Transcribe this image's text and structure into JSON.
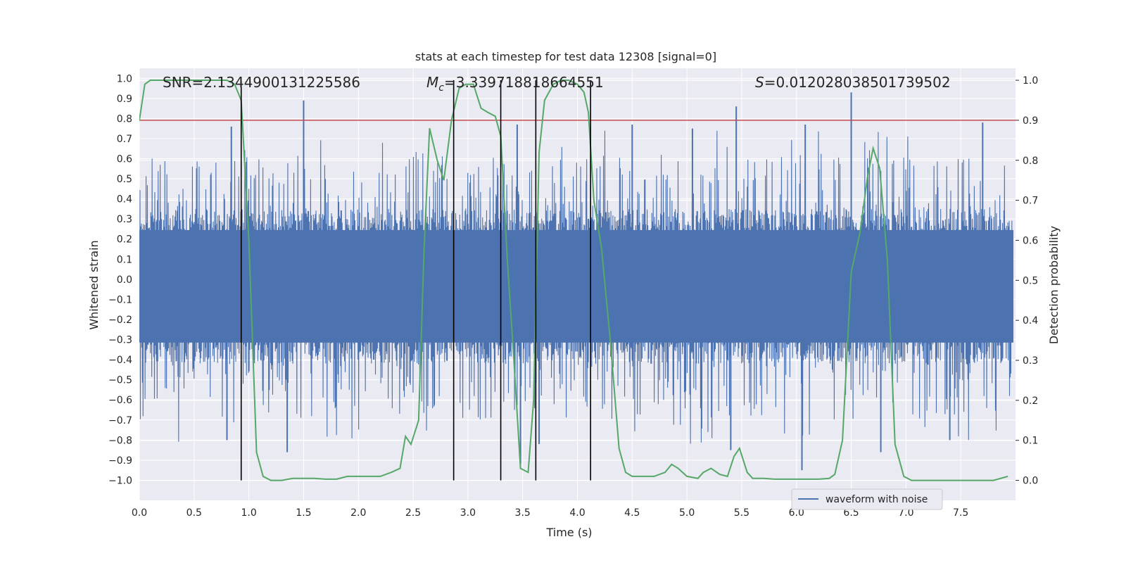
{
  "chart_data": {
    "type": "line",
    "title": "stats at each timestep for test data 12308 [signal=0]",
    "xlabel": "Time (s)",
    "ylabel_left": "Whitened strain",
    "ylabel_right": "Detection probability",
    "xlim": [
      0.0,
      8.0
    ],
    "ylim_left": [
      -1.1,
      1.05
    ],
    "ylim_right": [
      -0.05,
      1.03
    ],
    "x_ticks": [
      "0.0",
      "0.5",
      "1.0",
      "1.5",
      "2.0",
      "2.5",
      "3.0",
      "3.5",
      "4.0",
      "4.5",
      "5.0",
      "5.5",
      "6.0",
      "6.5",
      "7.0",
      "7.5"
    ],
    "y_ticks_left": [
      "1.0",
      "0.9",
      "0.8",
      "0.7",
      "0.6",
      "0.5",
      "0.4",
      "0.3",
      "0.2",
      "0.1",
      "0.0",
      "-0.1",
      "-0.2",
      "-0.3",
      "-0.4",
      "-0.5",
      "-0.6",
      "-0.7",
      "-0.8",
      "-0.9",
      "-1.0"
    ],
    "y_ticks_right": [
      "1.0",
      "0.9",
      "0.8",
      "0.7",
      "0.6",
      "0.5",
      "0.4",
      "0.3",
      "0.2",
      "0.1",
      "0.0"
    ],
    "grid": true,
    "legend": {
      "placement": "lower-right",
      "entries": [
        "waveform with noise"
      ]
    },
    "annotations": {
      "snr": "SNR=2.1344900131225586",
      "mc_symbol": "M",
      "mc_sub": "c",
      "mc_value": "=3.339718818664551",
      "s_symbol": "S",
      "s_value": "=0.012028038501739502"
    },
    "threshold": {
      "axis": "right",
      "value": 0.9,
      "color": "#c44e52"
    },
    "vertical_lines_x": [
      0.93,
      2.87,
      3.3,
      3.62,
      4.12
    ],
    "series": [
      {
        "name": "waveform with noise",
        "axis": "left",
        "color": "#4c72b0",
        "noise_envelope": {
          "dense_min": -0.42,
          "dense_max": 0.35,
          "spike_max": 0.93,
          "spike_min": -0.92
        },
        "spikes": [
          [
            0.84,
            0.76
          ],
          [
            1.5,
            0.89
          ],
          [
            3.45,
            0.77
          ],
          [
            4.5,
            0.77
          ],
          [
            5.05,
            0.75
          ],
          [
            5.45,
            0.86
          ],
          [
            6.08,
            0.77
          ],
          [
            6.5,
            0.93
          ],
          [
            7.7,
            0.78
          ],
          [
            0.8,
            -0.8
          ],
          [
            1.35,
            -0.86
          ],
          [
            3.48,
            -0.92
          ],
          [
            3.65,
            -0.82
          ],
          [
            5.4,
            -0.85
          ],
          [
            6.05,
            -0.95
          ],
          [
            6.77,
            -0.86
          ],
          [
            7.4,
            -0.8
          ]
        ]
      },
      {
        "name": "",
        "axis": "right",
        "color": "#55a868",
        "x": [
          0.0,
          0.05,
          0.1,
          0.3,
          0.5,
          0.7,
          0.8,
          0.87,
          0.93,
          1.0,
          1.07,
          1.13,
          1.2,
          1.3,
          1.4,
          1.5,
          1.6,
          1.7,
          1.8,
          1.9,
          2.0,
          2.1,
          2.2,
          2.3,
          2.38,
          2.43,
          2.48,
          2.55,
          2.6,
          2.65,
          2.72,
          2.78,
          2.85,
          2.92,
          2.98,
          3.05,
          3.12,
          3.18,
          3.25,
          3.3,
          3.36,
          3.42,
          3.48,
          3.55,
          3.6,
          3.65,
          3.7,
          3.78,
          3.85,
          3.92,
          4.0,
          4.06,
          4.1,
          4.15,
          4.22,
          4.3,
          4.38,
          4.44,
          4.5,
          4.6,
          4.7,
          4.8,
          4.86,
          4.92,
          4.96,
          5.0,
          5.1,
          5.15,
          5.22,
          5.3,
          5.37,
          5.43,
          5.48,
          5.55,
          5.6,
          5.7,
          5.8,
          6.0,
          6.2,
          6.3,
          6.35,
          6.42,
          6.5,
          6.58,
          6.65,
          6.7,
          6.76,
          6.83,
          6.9,
          6.98,
          7.05,
          7.2,
          7.5,
          7.8,
          7.93
        ],
        "y": [
          0.9,
          0.99,
          1.0,
          1.0,
          1.0,
          1.0,
          1.0,
          0.99,
          0.95,
          0.6,
          0.07,
          0.01,
          0.0,
          0.0,
          0.005,
          0.005,
          0.005,
          0.003,
          0.003,
          0.01,
          0.01,
          0.01,
          0.01,
          0.02,
          0.03,
          0.11,
          0.09,
          0.15,
          0.58,
          0.88,
          0.8,
          0.75,
          0.9,
          0.98,
          0.99,
          0.99,
          0.93,
          0.92,
          0.91,
          0.86,
          0.55,
          0.3,
          0.03,
          0.02,
          0.2,
          0.82,
          0.95,
          0.99,
          1.0,
          1.0,
          0.99,
          0.97,
          0.92,
          0.7,
          0.58,
          0.35,
          0.08,
          0.02,
          0.01,
          0.01,
          0.01,
          0.02,
          0.04,
          0.03,
          0.02,
          0.01,
          0.005,
          0.02,
          0.03,
          0.015,
          0.01,
          0.06,
          0.08,
          0.02,
          0.005,
          0.005,
          0.003,
          0.003,
          0.003,
          0.005,
          0.015,
          0.1,
          0.52,
          0.62,
          0.76,
          0.83,
          0.78,
          0.55,
          0.09,
          0.01,
          0.0,
          0.0,
          0.0,
          0.0,
          0.01
        ]
      }
    ]
  }
}
